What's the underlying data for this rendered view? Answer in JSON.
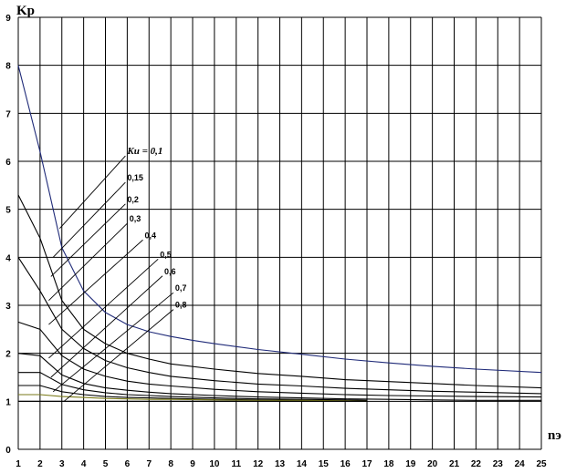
{
  "chart_data": {
    "type": "line",
    "ylabel": "Kp",
    "xlabel": "nэ",
    "xlim": [
      1,
      25
    ],
    "ylim": [
      0,
      9
    ],
    "x_ticks": [
      1,
      2,
      3,
      4,
      5,
      6,
      7,
      8,
      9,
      10,
      11,
      12,
      13,
      14,
      15,
      16,
      17,
      18,
      19,
      20,
      21,
      22,
      23,
      24,
      25
    ],
    "y_ticks": [
      0,
      1,
      2,
      3,
      4,
      5,
      6,
      7,
      8,
      9
    ],
    "grid": true,
    "legend_title": "Kи = 0,1",
    "series": [
      {
        "name": "0,1",
        "color": "#1f2a78",
        "points": [
          [
            1,
            8.0
          ],
          [
            2,
            6.2
          ],
          [
            3,
            4.2
          ],
          [
            4,
            3.3
          ],
          [
            5,
            2.85
          ],
          [
            6,
            2.6
          ],
          [
            7,
            2.45
          ],
          [
            8,
            2.35
          ],
          [
            9,
            2.27
          ],
          [
            10,
            2.2
          ],
          [
            12,
            2.08
          ],
          [
            14,
            1.98
          ],
          [
            16,
            1.88
          ],
          [
            18,
            1.8
          ],
          [
            20,
            1.73
          ],
          [
            22,
            1.67
          ],
          [
            25,
            1.6
          ]
        ]
      },
      {
        "name": "0,15",
        "color": "#000000",
        "points": [
          [
            1,
            5.3
          ],
          [
            2,
            4.4
          ],
          [
            3,
            3.1
          ],
          [
            4,
            2.5
          ],
          [
            5,
            2.2
          ],
          [
            6,
            2.0
          ],
          [
            7,
            1.88
          ],
          [
            8,
            1.78
          ],
          [
            10,
            1.67
          ],
          [
            12,
            1.58
          ],
          [
            14,
            1.52
          ],
          [
            16,
            1.45
          ],
          [
            18,
            1.41
          ],
          [
            20,
            1.37
          ],
          [
            22,
            1.33
          ],
          [
            25,
            1.28
          ]
        ]
      },
      {
        "name": "0,2",
        "color": "#000000",
        "points": [
          [
            1,
            4.0
          ],
          [
            2,
            3.3
          ],
          [
            3,
            2.5
          ],
          [
            4,
            2.1
          ],
          [
            5,
            1.85
          ],
          [
            6,
            1.7
          ],
          [
            7,
            1.6
          ],
          [
            8,
            1.52
          ],
          [
            10,
            1.43
          ],
          [
            12,
            1.36
          ],
          [
            14,
            1.32
          ],
          [
            16,
            1.27
          ],
          [
            18,
            1.24
          ],
          [
            20,
            1.21
          ],
          [
            22,
            1.19
          ],
          [
            25,
            1.16
          ]
        ]
      },
      {
        "name": "0,3",
        "color": "#000000",
        "points": [
          [
            1,
            2.65
          ],
          [
            2,
            2.5
          ],
          [
            3,
            1.95
          ],
          [
            4,
            1.67
          ],
          [
            5,
            1.52
          ],
          [
            6,
            1.42
          ],
          [
            7,
            1.36
          ],
          [
            8,
            1.32
          ],
          [
            10,
            1.25
          ],
          [
            12,
            1.2
          ],
          [
            14,
            1.17
          ],
          [
            16,
            1.14
          ],
          [
            18,
            1.12
          ],
          [
            20,
            1.11
          ],
          [
            22,
            1.1
          ],
          [
            25,
            1.09
          ]
        ]
      },
      {
        "name": "0,4",
        "color": "#000000",
        "points": [
          [
            1,
            2.0
          ],
          [
            2,
            1.95
          ],
          [
            3,
            1.55
          ],
          [
            4,
            1.37
          ],
          [
            5,
            1.28
          ],
          [
            6,
            1.23
          ],
          [
            7,
            1.19
          ],
          [
            8,
            1.16
          ],
          [
            10,
            1.12
          ],
          [
            12,
            1.09
          ],
          [
            14,
            1.07
          ],
          [
            16,
            1.05
          ],
          [
            18,
            1.04
          ],
          [
            20,
            1.03
          ],
          [
            22,
            1.02
          ],
          [
            25,
            1.02
          ]
        ]
      },
      {
        "name": "0,5",
        "color": "#000000",
        "points": [
          [
            1,
            1.6
          ],
          [
            2,
            1.6
          ],
          [
            3,
            1.35
          ],
          [
            4,
            1.24
          ],
          [
            5,
            1.18
          ],
          [
            6,
            1.14
          ],
          [
            7,
            1.12
          ],
          [
            8,
            1.1
          ],
          [
            10,
            1.07
          ],
          [
            12,
            1.05
          ],
          [
            14,
            1.04
          ],
          [
            16,
            1.03
          ],
          [
            17,
            1.02
          ]
        ]
      },
      {
        "name": "0,6",
        "color": "#000000",
        "points": [
          [
            1,
            1.33
          ],
          [
            2,
            1.33
          ],
          [
            3,
            1.2
          ],
          [
            4,
            1.14
          ],
          [
            5,
            1.1
          ],
          [
            6,
            1.08
          ],
          [
            7,
            1.07
          ],
          [
            8,
            1.06
          ],
          [
            10,
            1.04
          ],
          [
            12,
            1.03
          ],
          [
            14,
            1.02
          ],
          [
            16,
            1.01
          ],
          [
            17,
            1.0
          ]
        ]
      },
      {
        "name": "0,7",
        "color": "#7a7a18",
        "points": [
          [
            1,
            1.14
          ],
          [
            2,
            1.14
          ],
          [
            3,
            1.1
          ],
          [
            4,
            1.08
          ],
          [
            5,
            1.06
          ],
          [
            6,
            1.05
          ],
          [
            7,
            1.04
          ],
          [
            8,
            1.04
          ],
          [
            10,
            1.03
          ],
          [
            12,
            1.02
          ],
          [
            14,
            1.02
          ],
          [
            16,
            1.01
          ],
          [
            17,
            1.0
          ]
        ]
      },
      {
        "name": "0,8",
        "color": "#000000",
        "points": [
          [
            1,
            1.0
          ],
          [
            17,
            1.0
          ]
        ]
      }
    ],
    "annotations": [
      {
        "text": "Kи = 0,1",
        "x": 6.0,
        "y": 6.15,
        "tx": 2.9,
        "ty": 4.6
      },
      {
        "text": "0,15",
        "x": 6.0,
        "y": 5.6,
        "tx": 2.6,
        "ty": 4.0
      },
      {
        "text": "0,2",
        "x": 6.0,
        "y": 5.15,
        "tx": 2.5,
        "ty": 3.6
      },
      {
        "text": "0,3",
        "x": 6.1,
        "y": 4.75,
        "tx": 2.4,
        "ty": 3.1
      },
      {
        "text": "0,4",
        "x": 6.8,
        "y": 4.4,
        "tx": 2.4,
        "ty": 2.6
      },
      {
        "text": "0,5",
        "x": 7.5,
        "y": 4.0,
        "tx": 2.4,
        "ty": 1.9
      },
      {
        "text": "0,6",
        "x": 7.7,
        "y": 3.65,
        "tx": 2.5,
        "ty": 1.5
      },
      {
        "text": "0,7",
        "x": 8.2,
        "y": 3.3,
        "tx": 2.6,
        "ty": 1.2
      },
      {
        "text": "0,8",
        "x": 8.2,
        "y": 2.95,
        "tx": 3.1,
        "ty": 1.0
      }
    ]
  }
}
